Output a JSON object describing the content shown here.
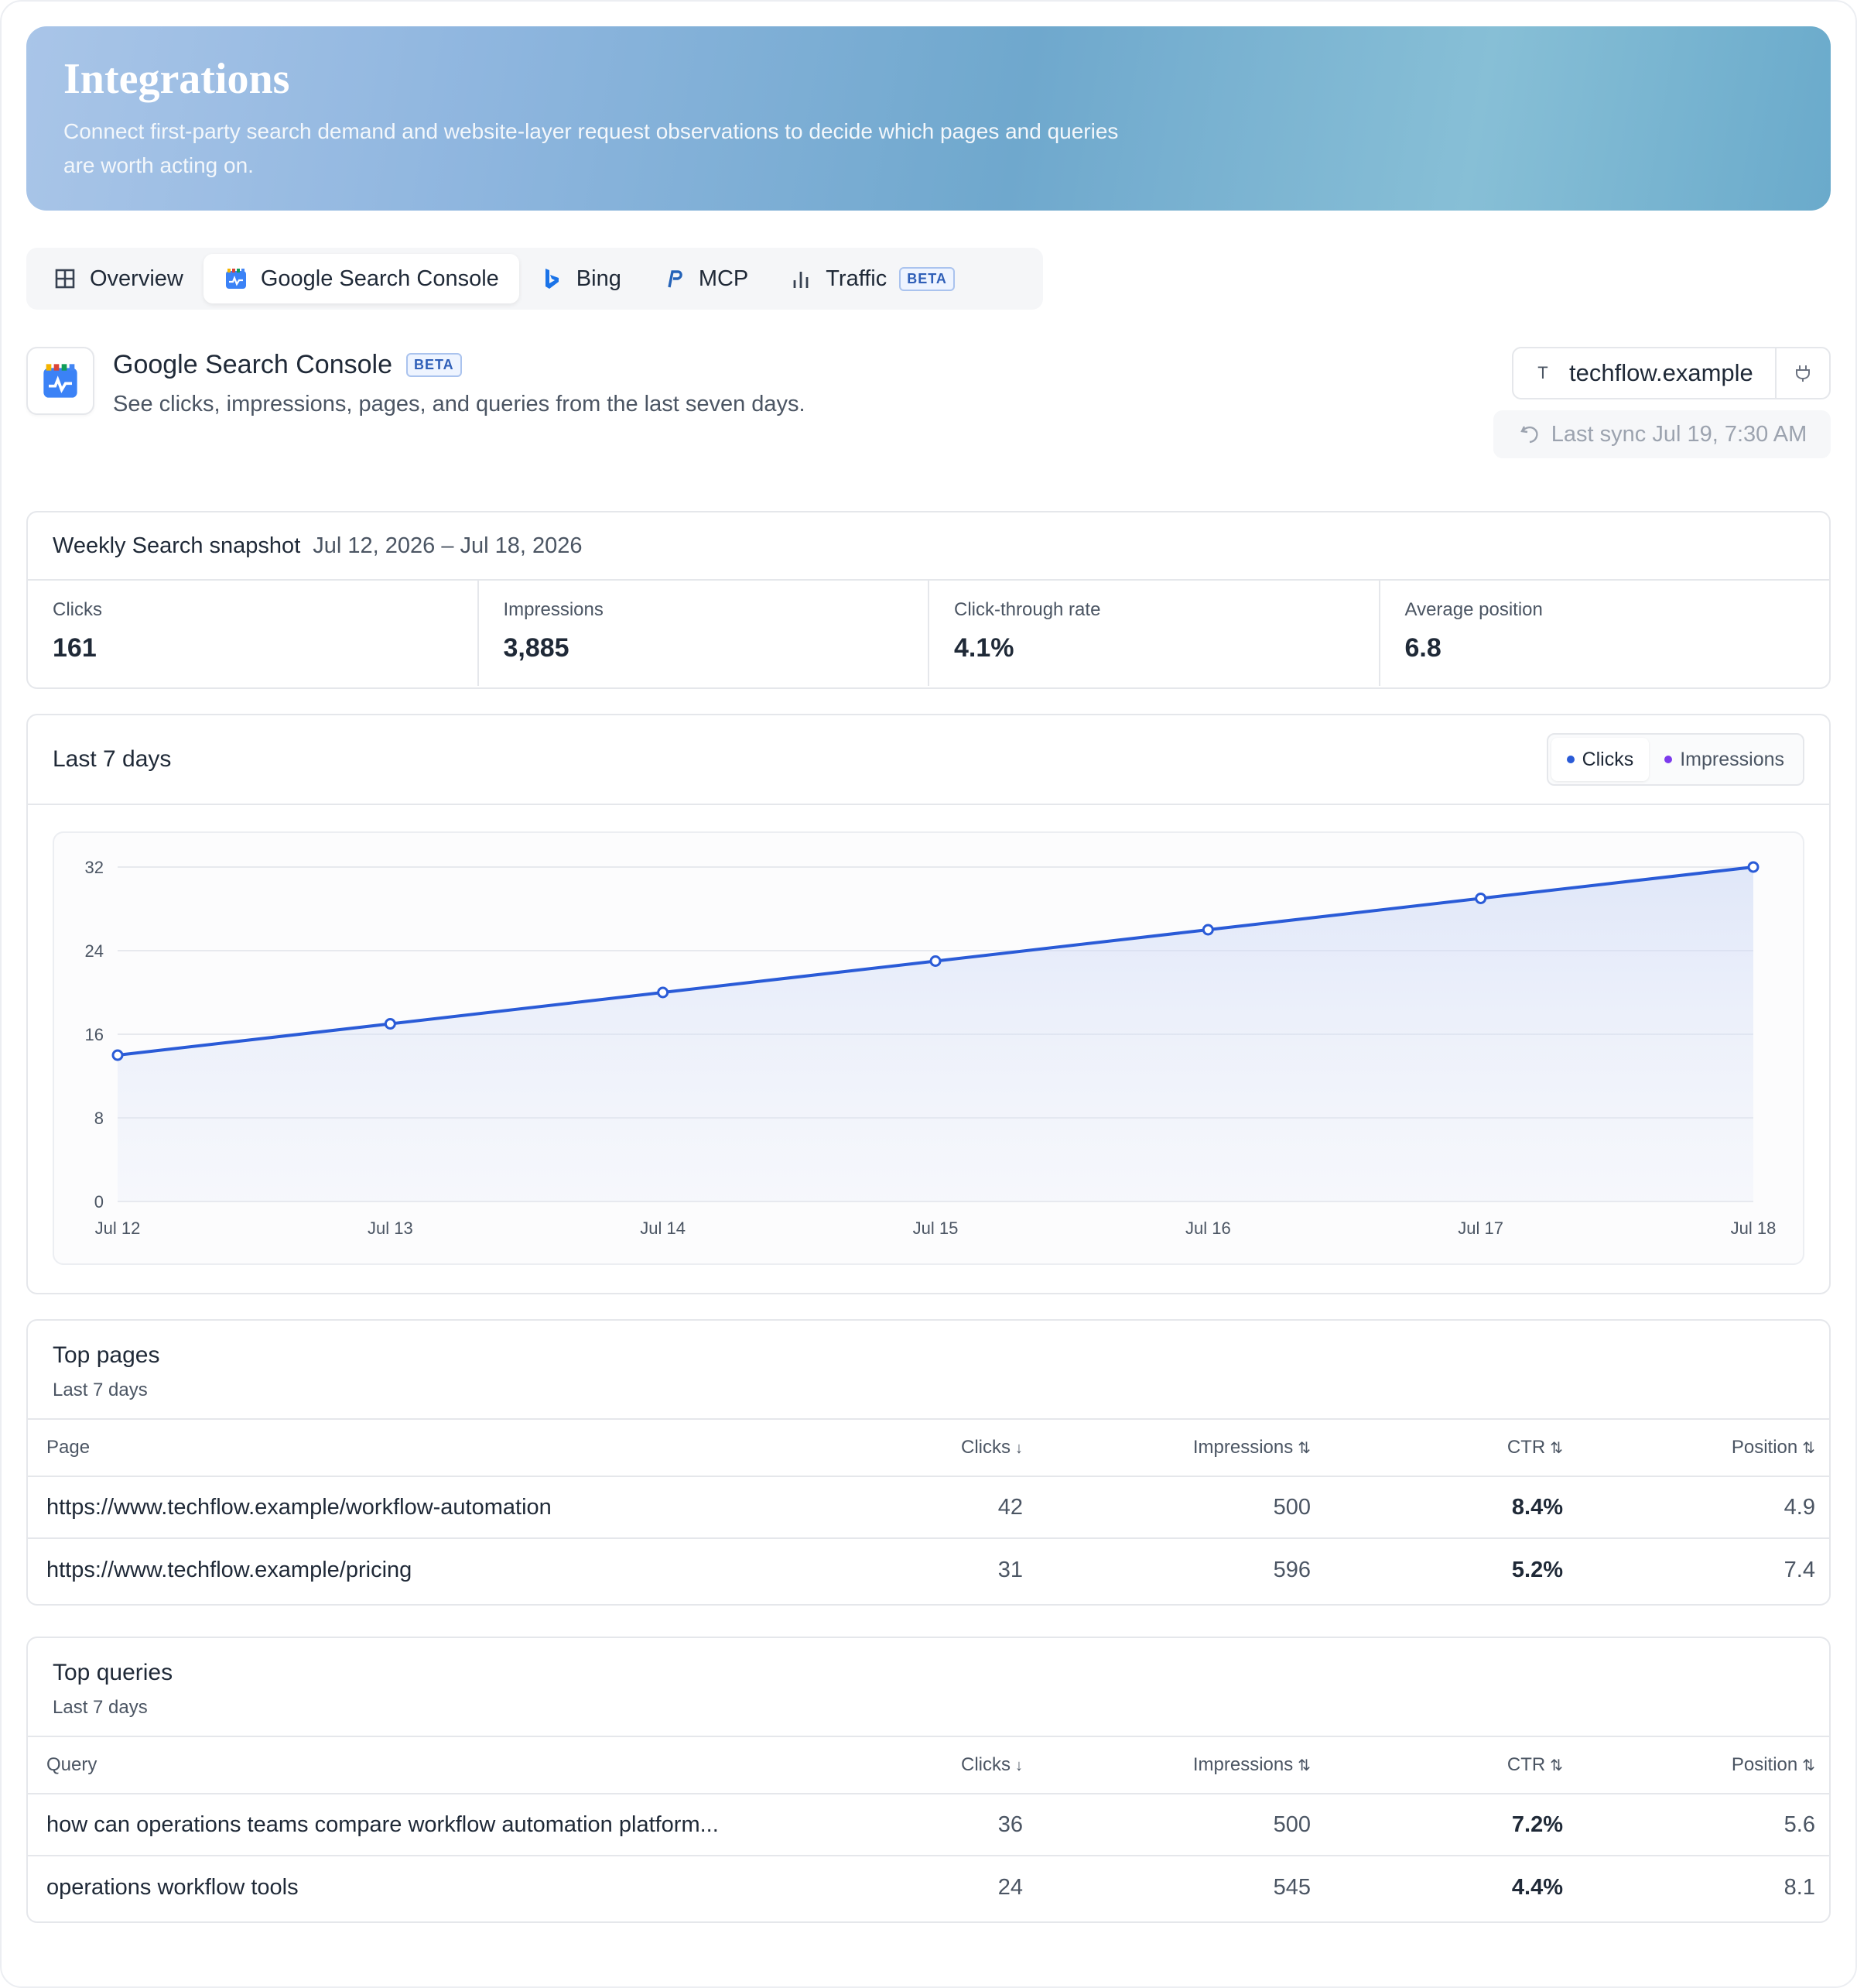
{
  "hero": {
    "title": "Integrations",
    "description": "Connect first-party search demand and website-layer request observations to decide which pages and queries are worth acting on."
  },
  "tabs": [
    {
      "label": "Overview",
      "icon": "grid-icon"
    },
    {
      "label": "Google Search Console",
      "icon": "search-console-icon",
      "active": true
    },
    {
      "label": "Bing",
      "icon": "bing-icon"
    },
    {
      "label": "MCP",
      "icon": "mcp-icon"
    },
    {
      "label": "Traffic",
      "icon": "bar-chart-icon",
      "badge": "BETA"
    }
  ],
  "integration": {
    "title": "Google Search Console",
    "badge": "BETA",
    "subtitle": "See clicks, impressions, pages, and queries from the last seven days.",
    "site_initial": "T",
    "site_name": "techflow.example",
    "last_sync": "Last sync Jul 19, 7:30 AM"
  },
  "snapshot": {
    "title": "Weekly Search snapshot",
    "range": "Jul 12, 2026 – Jul 18, 2026",
    "metrics": [
      {
        "label": "Clicks",
        "value": "161"
      },
      {
        "label": "Impressions",
        "value": "3,885"
      },
      {
        "label": "Click-through rate",
        "value": "4.1%"
      },
      {
        "label": "Average position",
        "value": "6.8"
      }
    ]
  },
  "chart_section": {
    "title": "Last 7 days",
    "toggle": {
      "clicks": "Clicks",
      "impressions": "Impressions"
    }
  },
  "colors": {
    "clicks": "#2a5bd7",
    "impressions": "#7c3aed",
    "accent": "#2f5fb8"
  },
  "chart_data": {
    "type": "line",
    "series": [
      {
        "name": "Clicks",
        "values": [
          14,
          17,
          20,
          23,
          26,
          29,
          32
        ]
      }
    ],
    "x": [
      "Jul 12",
      "Jul 13",
      "Jul 14",
      "Jul 15",
      "Jul 16",
      "Jul 17",
      "Jul 18"
    ],
    "yticks": [
      "0",
      "8",
      "16",
      "24",
      "32"
    ],
    "ylim": [
      0,
      32
    ],
    "grid": true,
    "legend": "top-right"
  },
  "top_pages": {
    "title": "Top pages",
    "subtitle": "Last 7 days",
    "columns": [
      "Page",
      "Clicks",
      "Impressions",
      "CTR",
      "Position"
    ],
    "sort_icons": [
      "↓",
      "⇅",
      "⇅",
      "⇅"
    ],
    "rows": [
      [
        "https://www.techflow.example/workflow-automation",
        "42",
        "500",
        "8.4%",
        "4.9"
      ],
      [
        "https://www.techflow.example/pricing",
        "31",
        "596",
        "5.2%",
        "7.4"
      ]
    ]
  },
  "top_queries": {
    "title": "Top queries",
    "subtitle": "Last 7 days",
    "columns": [
      "Query",
      "Clicks",
      "Impressions",
      "CTR",
      "Position"
    ],
    "sort_icons": [
      "↓",
      "⇅",
      "⇅",
      "⇅"
    ],
    "rows": [
      [
        "how can operations teams compare workflow automation platform...",
        "36",
        "500",
        "7.2%",
        "5.6"
      ],
      [
        "operations workflow tools",
        "24",
        "545",
        "4.4%",
        "8.1"
      ]
    ]
  }
}
